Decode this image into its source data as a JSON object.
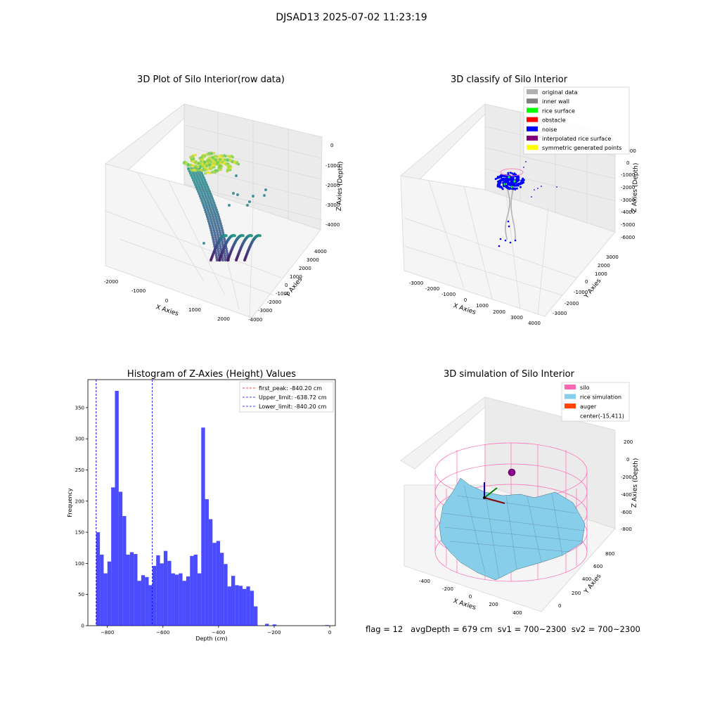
{
  "figure": {
    "suptitle": "DJSAD13 2025-07-02 11:23:19",
    "footer": "flag = 12   avgDepth = 679 cm  sv1 = 700~2300  sv2 = 700~2300"
  },
  "chart_data": [
    {
      "type": "scatter3d",
      "title": "3D Plot of Silo Interior(row data)",
      "xlabel": "X Axies",
      "ylabel": "Y Axies",
      "zlabel": "Z Axies (Depth)",
      "x_ticks": [
        "-2000",
        "-1000",
        "0",
        "1000",
        "2000"
      ],
      "y_ticks": [
        "-4000",
        "-3000",
        "-2000",
        "-1000",
        "0",
        "1000",
        "2000",
        "3000",
        "4000"
      ],
      "z_ticks": [
        "-4000",
        "-3000",
        "-2000",
        "-1000",
        "0"
      ],
      "colormap": [
        "#440154",
        "#3b528b",
        "#21918c",
        "#5ec962",
        "#fde725"
      ]
    },
    {
      "type": "scatter3d",
      "title": "3D classify of Silo Interior",
      "xlabel": "X Axies",
      "ylabel": "Y Axies",
      "zlabel": "Z Axies (Depth)",
      "x_ticks": [
        "-3000",
        "-2000",
        "-1000",
        "0",
        "1000",
        "2000",
        "3000",
        "4000"
      ],
      "y_ticks": [
        "-3000",
        "-2000",
        "-1000",
        "0",
        "1000",
        "2000",
        "3000"
      ],
      "z_ticks": [
        "-6000",
        "-5000",
        "-4000",
        "-3000",
        "-2000",
        "-1000",
        "0",
        "1000"
      ],
      "legend": [
        {
          "label": "original data",
          "color": "#b0b0b0"
        },
        {
          "label": "inner wall",
          "color": "#808080"
        },
        {
          "label": "rice surface",
          "color": "#00ff00"
        },
        {
          "label": "obstacle",
          "color": "#ff0000"
        },
        {
          "label": "noise",
          "color": "#0000ff"
        },
        {
          "label": "interpolated rice surface",
          "color": "#800080"
        },
        {
          "label": "symmetric generated points",
          "color": "#ffff00"
        }
      ],
      "legend_position": "top-right"
    },
    {
      "type": "bar",
      "title": "Histogram of Z-Axies (Height) Values",
      "xlabel": "Depth (cm)",
      "ylabel": "Frequency",
      "xlim": [
        -870,
        20
      ],
      "ylim": [
        0,
        395
      ],
      "x_ticks": [
        -800,
        -600,
        -400,
        -200,
        0
      ],
      "y_ticks": [
        0,
        50,
        100,
        150,
        200,
        250,
        300,
        350
      ],
      "bar_color": "#0000ff",
      "bin_edges": [
        -840.2,
        -826.7,
        -813.2,
        -799.7,
        -786.2,
        -772.7,
        -759.2,
        -745.7,
        -732.2,
        -718.7,
        -705.2,
        -691.7,
        -678.2,
        -664.7,
        -651.2,
        -637.7,
        -624.2,
        -610.7,
        -597.2,
        -583.7,
        -570.2,
        -556.7,
        -543.2,
        -529.7,
        -516.2,
        -502.7,
        -489.2,
        -475.7,
        -462.2,
        -448.7,
        -435.2,
        -421.7,
        -408.2,
        -394.7,
        -381.2,
        -367.7,
        -354.2,
        -340.7,
        -327.2,
        -313.7,
        -300.2,
        -286.7,
        -273.2,
        -259.7,
        -246.2,
        -232.7,
        -219.2,
        -205.7,
        -192.2,
        -178.7,
        -165.2,
        -151.7,
        -138.2,
        -124.7,
        -111.2,
        -97.7,
        -84.2,
        -70.7,
        -57.2,
        -43.7,
        -30.2,
        -16.7,
        -3.2
      ],
      "values": [
        150,
        114,
        84,
        103,
        222,
        377,
        215,
        176,
        114,
        118,
        115,
        72,
        81,
        78,
        65,
        96,
        113,
        100,
        120,
        104,
        84,
        82,
        84,
        72,
        79,
        112,
        114,
        84,
        318,
        203,
        171,
        133,
        136,
        117,
        99,
        63,
        80,
        65,
        64,
        59,
        63,
        56,
        31,
        0,
        0,
        3,
        0,
        2,
        0,
        0,
        0,
        0,
        0,
        0,
        0,
        0,
        0,
        0,
        0,
        0,
        0,
        1
      ],
      "vlines": [
        {
          "label": "first_peak: -840.20 cm",
          "x": -840.2,
          "color": "#ff0000",
          "style": "dashed"
        },
        {
          "label": "Upper_limit: -638.72 cm",
          "x": -638.72,
          "color": "#0000ff",
          "style": "dashed"
        },
        {
          "label": "Lower_limit: -840.20 cm",
          "x": -840.2,
          "color": "#0000ff",
          "style": "dashed"
        }
      ],
      "legend_position": "top-right"
    },
    {
      "type": "surface3d",
      "title": "3D simulation of Silo Interior",
      "xlabel": "X Axies",
      "ylabel": "Y Axies",
      "zlabel": "Z Axies (Depth)",
      "x_ticks": [
        "-400",
        "-200",
        "0",
        "200",
        "400"
      ],
      "y_ticks": [
        "0",
        "200",
        "400",
        "600",
        "800"
      ],
      "z_ticks": [
        "-800",
        "-600",
        "-400",
        "-200",
        "0",
        "200"
      ],
      "legend": [
        {
          "label": "silo",
          "color": "#ff69b4"
        },
        {
          "label": "rice simulation",
          "color": "#87ceeb"
        },
        {
          "label": "auger",
          "color": "#ff4500"
        },
        {
          "label": "center(-15,411)",
          "color": ""
        }
      ],
      "legend_position": "top-right"
    }
  ]
}
